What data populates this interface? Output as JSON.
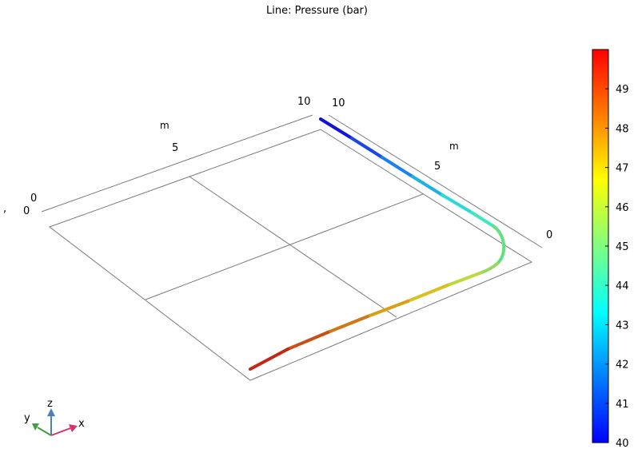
{
  "title": "Line: Pressure (bar)",
  "chart_data": {
    "type": "line",
    "title": "Line: Pressure (bar)",
    "view": "3d-perspective",
    "axes": {
      "x": {
        "unit": "m",
        "ticks": [
          "0",
          "5",
          "10"
        ],
        "range": [
          0,
          10
        ]
      },
      "y": {
        "unit": "m",
        "ticks": [
          "0",
          "5",
          "10"
        ],
        "range": [
          0,
          10
        ]
      }
    },
    "grid": true,
    "series": [
      {
        "quantity": "pressure",
        "unit": "bar",
        "description": "pipe centerline colored by pressure, 40 bar at inlet rising to 50 bar at outlet",
        "values_start_end": [
          40,
          50
        ]
      }
    ],
    "colorbar": {
      "min": 40,
      "max": 50,
      "ticks": [
        "40",
        "41",
        "42",
        "43",
        "44",
        "45",
        "46",
        "47",
        "48",
        "49"
      ],
      "colormap": "rainbow",
      "colors": [
        "#0000ff",
        "#0080ff",
        "#00ffff",
        "#80ff80",
        "#ffff00",
        "#ff8000",
        "#ff0000"
      ],
      "placement": "right"
    },
    "triad": {
      "labels": [
        "x",
        "y",
        "z"
      ],
      "colors": {
        "x": "#d6336c",
        "y": "#40a040",
        "z": "#4a7fc0"
      }
    }
  }
}
